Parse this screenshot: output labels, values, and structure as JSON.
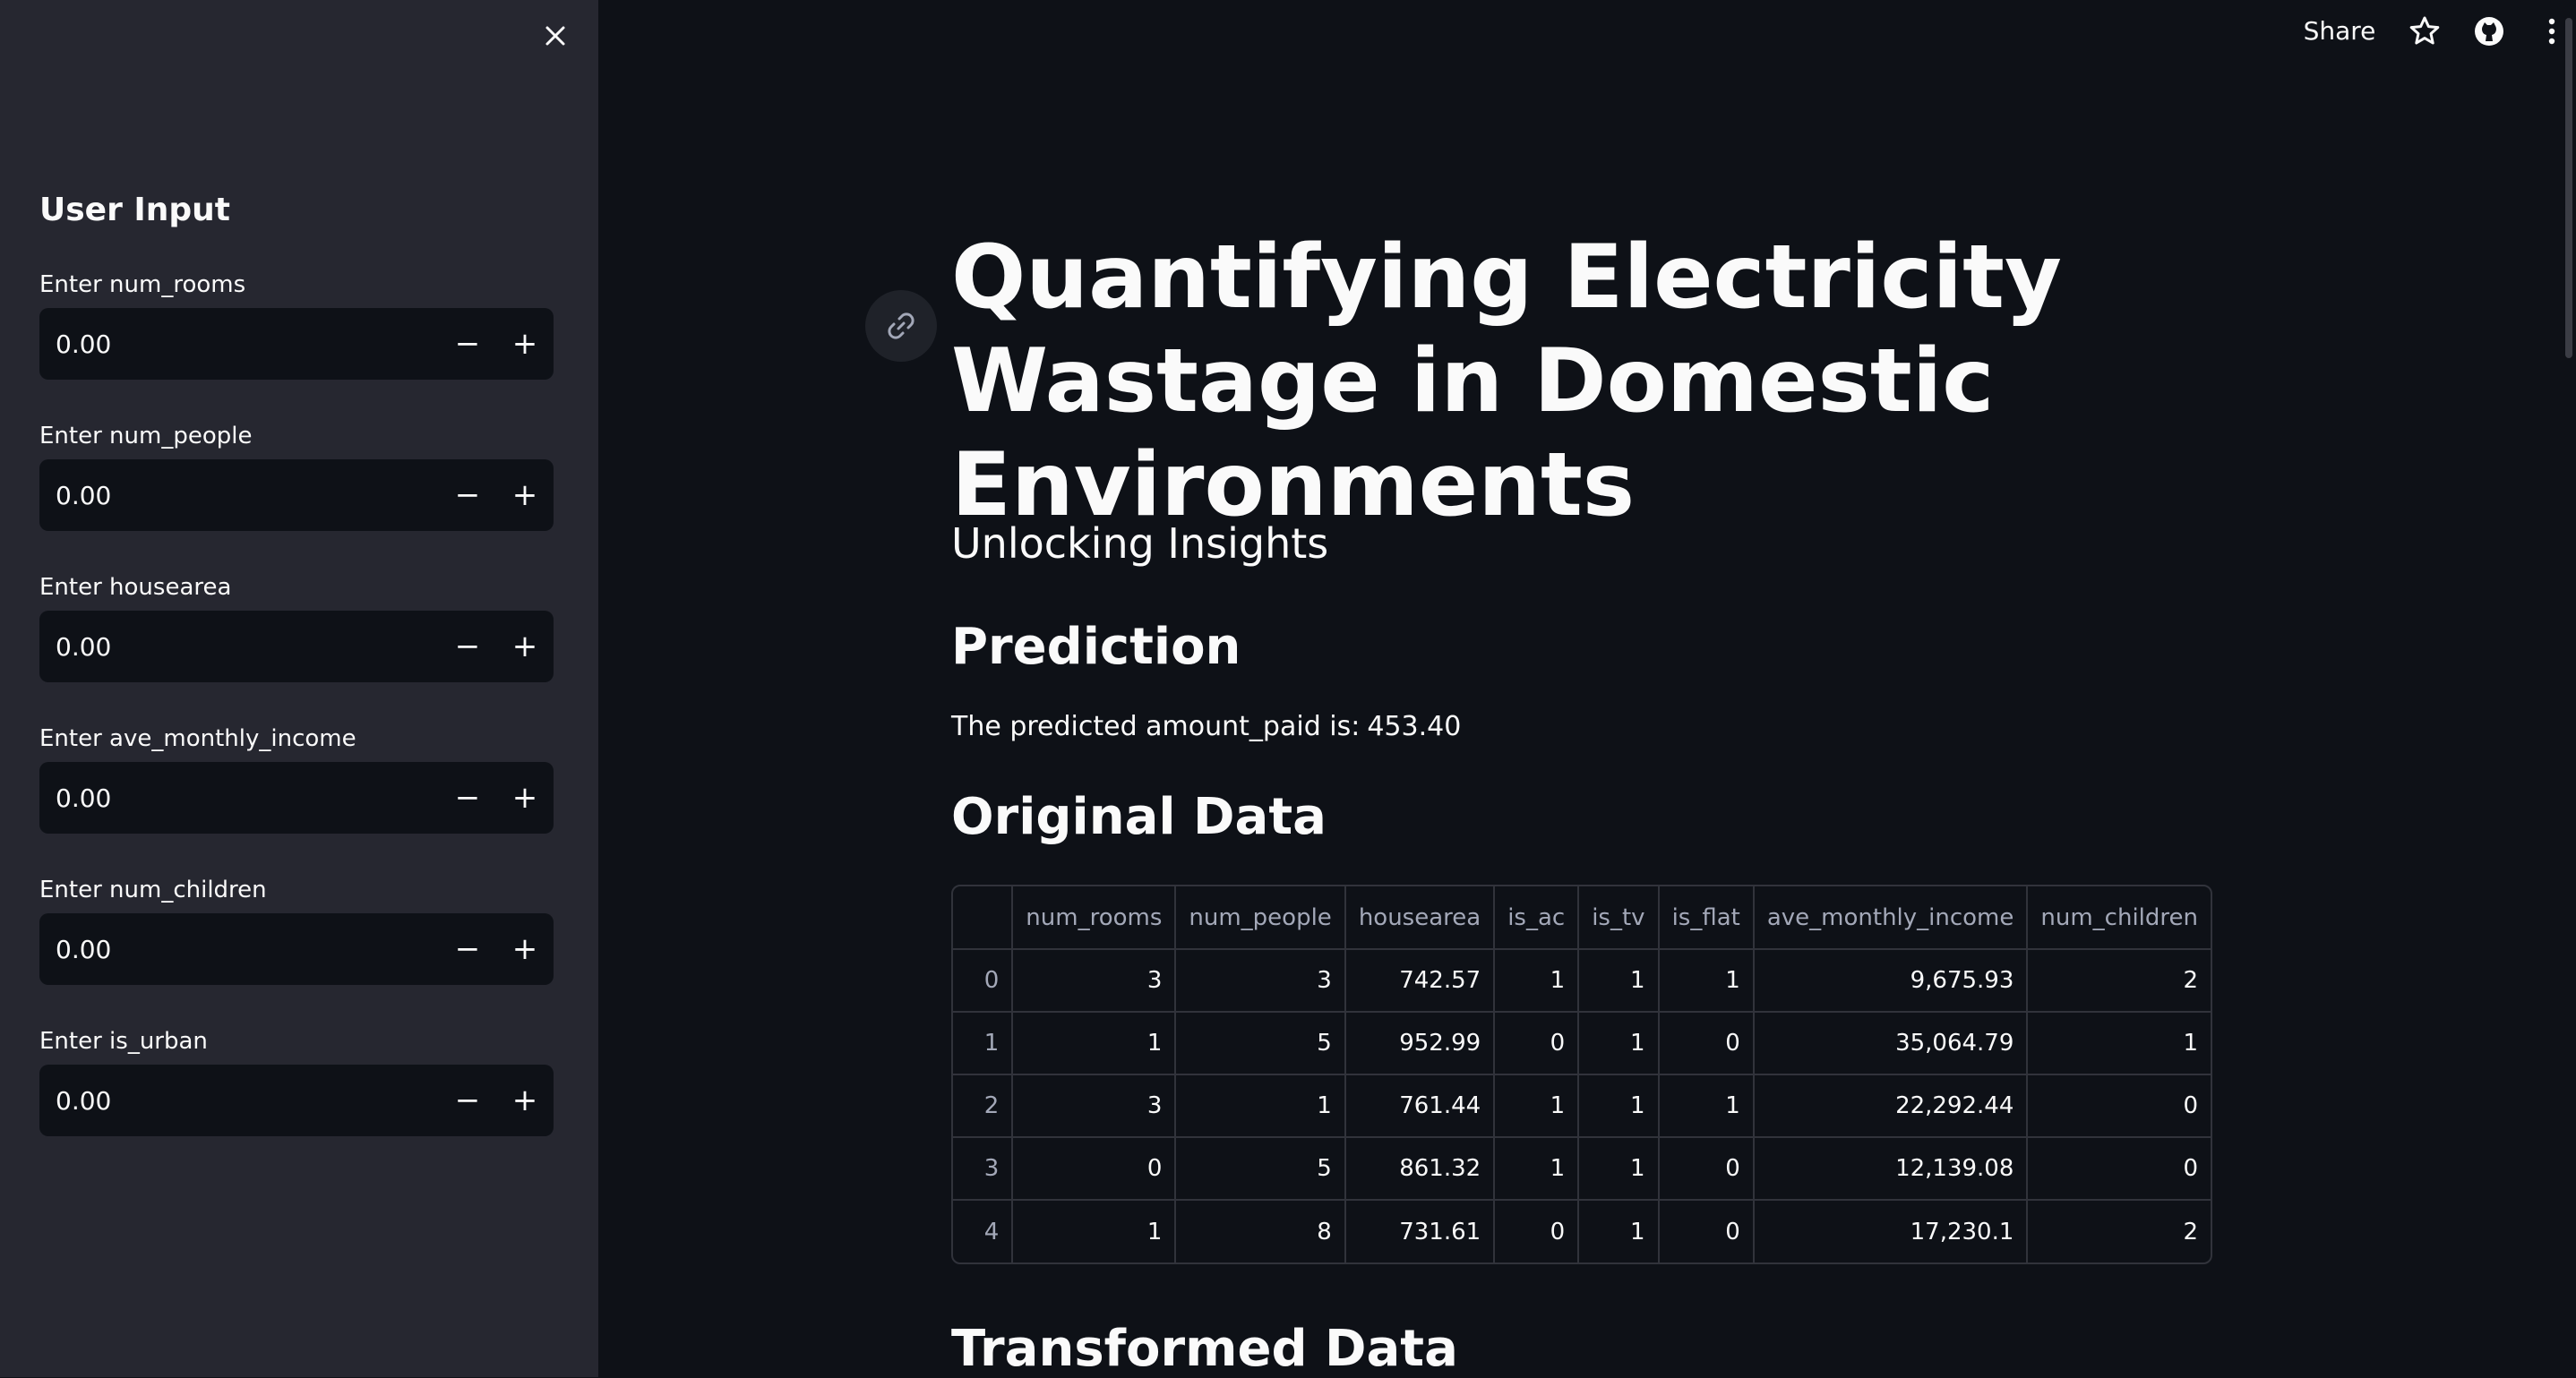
{
  "sidebar": {
    "title": "User Input",
    "close_icon": "close-icon",
    "fields": [
      {
        "label": "Enter num_rooms",
        "value": "0.00"
      },
      {
        "label": "Enter num_people",
        "value": "0.00"
      },
      {
        "label": "Enter housearea",
        "value": "0.00"
      },
      {
        "label": "Enter ave_monthly_income",
        "value": "0.00"
      },
      {
        "label": "Enter num_children",
        "value": "0.00"
      },
      {
        "label": "Enter is_urban",
        "value": "0.00"
      }
    ],
    "minus_label": "−",
    "plus_label": "+"
  },
  "header": {
    "share_label": "Share",
    "icons": [
      "star-icon",
      "github-icon",
      "more-vertical-icon"
    ]
  },
  "main": {
    "title": "Quantifying Electricity Wastage in Domestic Environments",
    "subtitle": "Unlocking Insights",
    "prediction_heading": "Prediction",
    "prediction_text": "The predicted amount_paid is:",
    "prediction_value": "453.40",
    "original_heading": "Original Data",
    "transformed_heading": "Transformed Data"
  },
  "table": {
    "columns": [
      "",
      "num_rooms",
      "num_people",
      "housearea",
      "is_ac",
      "is_tv",
      "is_flat",
      "ave_monthly_income",
      "num_children"
    ],
    "rows": [
      [
        "0",
        "3",
        "3",
        "742.57",
        "1",
        "1",
        "1",
        "9,675.93",
        "2"
      ],
      [
        "1",
        "1",
        "5",
        "952.99",
        "0",
        "1",
        "0",
        "35,064.79",
        "1"
      ],
      [
        "2",
        "3",
        "1",
        "761.44",
        "1",
        "1",
        "1",
        "22,292.44",
        "0"
      ],
      [
        "3",
        "0",
        "5",
        "861.32",
        "1",
        "1",
        "0",
        "12,139.08",
        "0"
      ],
      [
        "4",
        "1",
        "8",
        "731.61",
        "0",
        "1",
        "0",
        "17,230.1",
        "2"
      ]
    ]
  },
  "colors": {
    "background": "#0e1117",
    "sidebar": "#262730",
    "text": "#fafafa",
    "muted": "#a3a8b8"
  }
}
